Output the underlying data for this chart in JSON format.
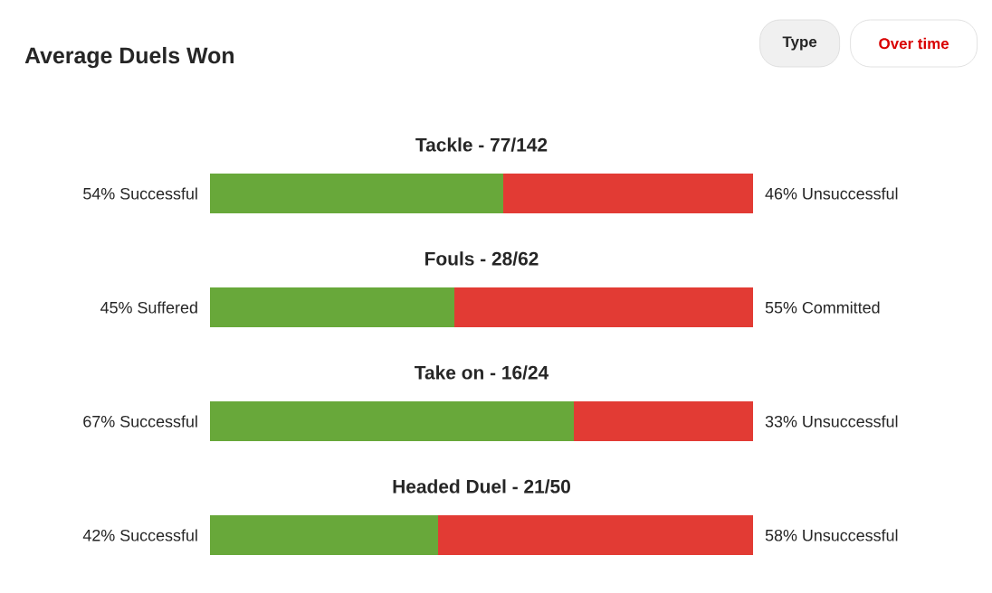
{
  "chart_data": {
    "type": "bar",
    "orientation": "horizontal",
    "stacked": true,
    "title": "Average Duels Won",
    "annotations": [
      "Type",
      "Over time"
    ],
    "categories": [
      "Tackle - 77/142",
      "Fouls - 28/62",
      "Take on - 16/24",
      "Headed Duel - 21/50"
    ],
    "xlim": [
      0,
      100
    ],
    "series": [
      {
        "color": "#68a83a",
        "values": [
          54,
          45,
          67,
          42
        ],
        "value_labels": [
          "54% Successful",
          "45% Suffered",
          "67% Successful",
          "42% Successful"
        ]
      },
      {
        "color": "#e23b34",
        "values": [
          46,
          55,
          33,
          58
        ],
        "value_labels": [
          "46% Unsuccessful",
          "55% Committed",
          "33% Unsuccessful",
          "58% Unsuccessful"
        ]
      }
    ]
  }
}
